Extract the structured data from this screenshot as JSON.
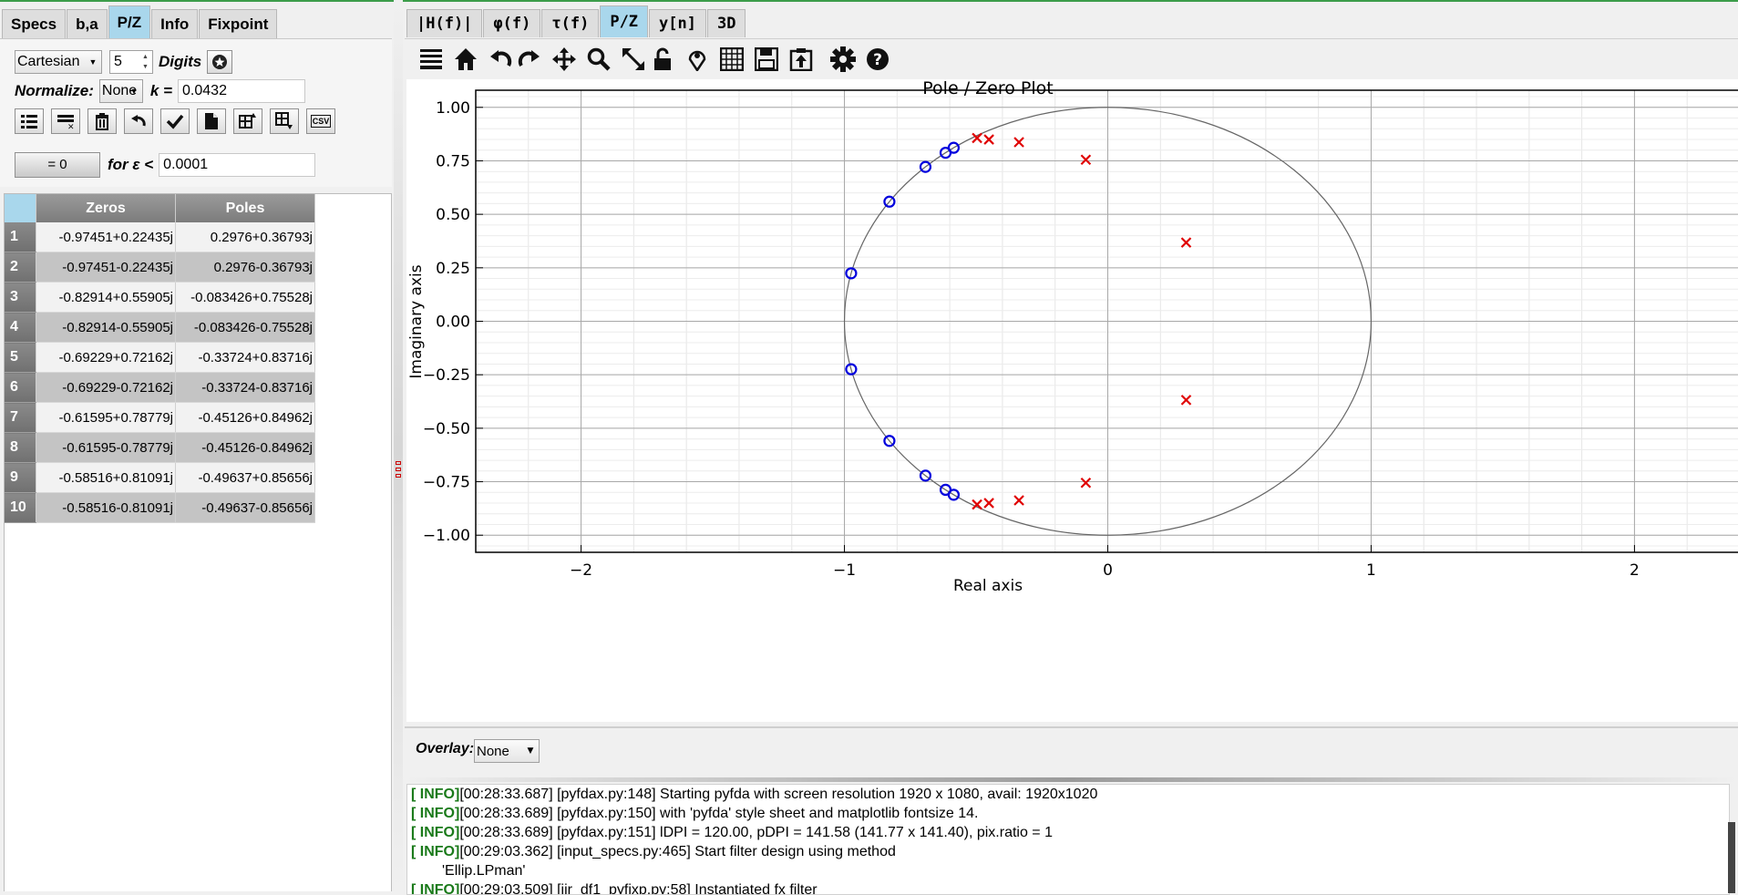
{
  "left": {
    "tabs": [
      "Specs",
      "b,a",
      "P/Z",
      "Info",
      "Fixpoint"
    ],
    "active_tab": "P/Z",
    "format": "Cartesian",
    "digits_value": "5",
    "digits_label": "Digits",
    "normalize_label": "Normalize:",
    "normalize_value": "None",
    "k_label": "k =",
    "k_value": "0.0432",
    "csv_label": "CSV",
    "zero_button": "= 0",
    "eps_label": "for ε <",
    "eps_value": "0.0001",
    "table": {
      "headers": [
        "Zeros",
        "Poles"
      ],
      "rows": [
        [
          "1",
          "-0.97451+0.22435j",
          "0.2976+0.36793j"
        ],
        [
          "2",
          "-0.97451-0.22435j",
          "0.2976-0.36793j"
        ],
        [
          "3",
          "-0.82914+0.55905j",
          "-0.083426+0.75528j"
        ],
        [
          "4",
          "-0.82914-0.55905j",
          "-0.083426-0.75528j"
        ],
        [
          "5",
          "-0.69229+0.72162j",
          "-0.33724+0.83716j"
        ],
        [
          "6",
          "-0.69229-0.72162j",
          "-0.33724-0.83716j"
        ],
        [
          "7",
          "-0.61595+0.78779j",
          "-0.45126+0.84962j"
        ],
        [
          "8",
          "-0.61595-0.78779j",
          "-0.45126-0.84962j"
        ],
        [
          "9",
          "-0.58516+0.81091j",
          "-0.49637+0.85656j"
        ],
        [
          "10",
          "-0.58516-0.81091j",
          "-0.49637-0.85656j"
        ]
      ]
    }
  },
  "right": {
    "tabs": [
      "|H(f)|",
      "φ(f)",
      "τ(f)",
      "P/Z",
      "y[n]",
      "3D"
    ],
    "active_tab": "P/Z",
    "overlay_label": "Overlay:",
    "overlay_value": "None",
    "log": [
      {
        "level": "[ INFO]",
        "text": "[00:28:33.687] [pyfdax.py:148] Starting pyfda with screen resolution 1920 x 1080, avail: 1920x1020"
      },
      {
        "level": "[ INFO]",
        "text": "[00:28:33.689] [pyfdax.py:150] with 'pyfda' style sheet and matplotlib fontsize 14."
      },
      {
        "level": "[ INFO]",
        "text": "[00:28:33.689] [pyfdax.py:151] lDPI = 120.00, pDPI = 141.58 (141.77 x 141.40), pix.ratio = 1"
      },
      {
        "level": "[ INFO]",
        "text": "[00:29:03.362] [input_specs.py:465] Start filter design using method"
      },
      {
        "level": "",
        "text": "'Ellip.LPman'"
      },
      {
        "level": "[ INFO]",
        "text": "[00:29:03.509] [iir_df1_pyfixp.py:58] Instantiated fx filter"
      }
    ]
  },
  "chart_data": {
    "type": "scatter",
    "title": "Pole / Zero Plot",
    "xlabel": "Real axis",
    "ylabel": "Imaginary axis",
    "xlim": [
      -2.4,
      2.4
    ],
    "ylim": [
      -1.08,
      1.08
    ],
    "xticks": [
      -2,
      -1,
      0,
      1,
      2
    ],
    "yticks": [
      -1.0,
      -0.75,
      -0.5,
      -0.25,
      0.0,
      0.25,
      0.5,
      0.75,
      1.0
    ],
    "xtick_labels": [
      "−2",
      "−1",
      "0",
      "1",
      "2"
    ],
    "ytick_labels": [
      "−1.00",
      "−0.75",
      "−0.50",
      "−0.25",
      "0.00",
      "0.25",
      "0.50",
      "0.75",
      "1.00"
    ],
    "grid": true,
    "unit_circle": true,
    "zeros_color": "#0000dd",
    "poles_color": "#e00000",
    "zeros": [
      [
        -0.97451,
        0.22435
      ],
      [
        -0.97451,
        -0.22435
      ],
      [
        -0.82914,
        0.55905
      ],
      [
        -0.82914,
        -0.55905
      ],
      [
        -0.69229,
        0.72162
      ],
      [
        -0.69229,
        -0.72162
      ],
      [
        -0.61595,
        0.78779
      ],
      [
        -0.61595,
        -0.78779
      ],
      [
        -0.58516,
        0.81091
      ],
      [
        -0.58516,
        -0.81091
      ]
    ],
    "poles": [
      [
        0.2976,
        0.36793
      ],
      [
        0.2976,
        -0.36793
      ],
      [
        -0.083426,
        0.75528
      ],
      [
        -0.083426,
        -0.75528
      ],
      [
        -0.33724,
        0.83716
      ],
      [
        -0.33724,
        -0.83716
      ],
      [
        -0.45126,
        0.84962
      ],
      [
        -0.45126,
        -0.84962
      ],
      [
        -0.49637,
        0.85656
      ],
      [
        -0.49637,
        -0.85656
      ]
    ]
  }
}
